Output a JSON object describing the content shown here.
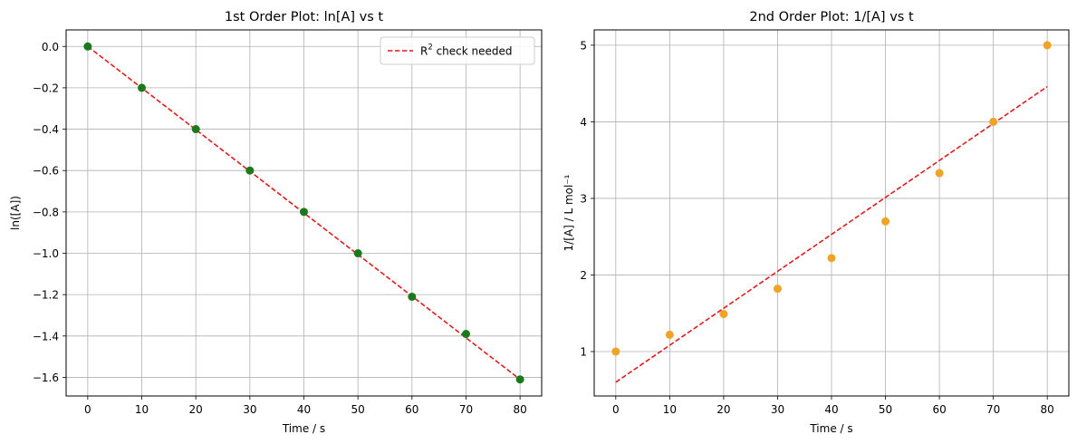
{
  "chart_data": [
    {
      "type": "scatter",
      "title": "1st Order Plot: ln[A] vs t",
      "xlabel": "Time / s",
      "ylabel": "ln([A])",
      "xlim": [
        -4,
        84
      ],
      "ylim": [
        -1.69,
        0.08
      ],
      "xticks": [
        0,
        10,
        20,
        30,
        40,
        50,
        60,
        70,
        80
      ],
      "yticks": [
        0.0,
        -0.2,
        -0.4,
        -0.6,
        -0.8,
        -1.0,
        -1.2,
        -1.4,
        -1.6
      ],
      "ytick_labels": [
        "0.0",
        "−0.2",
        "−0.4",
        "−0.6",
        "−0.8",
        "−1.0",
        "−1.2",
        "−1.4",
        "−1.6"
      ],
      "grid": true,
      "legend_position": "top-right",
      "series": [
        {
          "kind": "scatter",
          "color": "#1a7a1a",
          "x": [
            0,
            10,
            20,
            30,
            40,
            50,
            60,
            70,
            80
          ],
          "y": [
            0.0,
            -0.2,
            -0.4,
            -0.6,
            -0.8,
            -1.0,
            -1.21,
            -1.39,
            -1.61
          ]
        },
        {
          "kind": "line",
          "name": "R² check needed",
          "color": "#e31a1c",
          "dashed": true,
          "x": [
            0,
            80
          ],
          "y": [
            0.0,
            -1.61
          ]
        }
      ],
      "legend": {
        "prefix": "R",
        "superscript": "2",
        "suffix": " check needed"
      }
    },
    {
      "type": "scatter",
      "title": "2nd Order Plot: 1/[A] vs t",
      "xlabel": "Time / s",
      "ylabel": "1/[A] / L mol⁻¹",
      "xlim": [
        -4,
        84
      ],
      "ylim": [
        0.42,
        5.2
      ],
      "xticks": [
        0,
        10,
        20,
        30,
        40,
        50,
        60,
        70,
        80
      ],
      "yticks": [
        1,
        2,
        3,
        4,
        5
      ],
      "ytick_labels": [
        "1",
        "2",
        "3",
        "4",
        "5"
      ],
      "grid": true,
      "series": [
        {
          "kind": "scatter",
          "color": "#f0a326",
          "x": [
            0,
            10,
            20,
            30,
            40,
            50,
            60,
            70,
            80
          ],
          "y": [
            1.0,
            1.22,
            1.49,
            1.82,
            2.22,
            2.7,
            3.33,
            4.0,
            5.0
          ]
        },
        {
          "kind": "line",
          "color": "#e31a1c",
          "dashed": true,
          "x": [
            0,
            80
          ],
          "y": [
            0.6,
            4.46
          ]
        }
      ]
    }
  ]
}
